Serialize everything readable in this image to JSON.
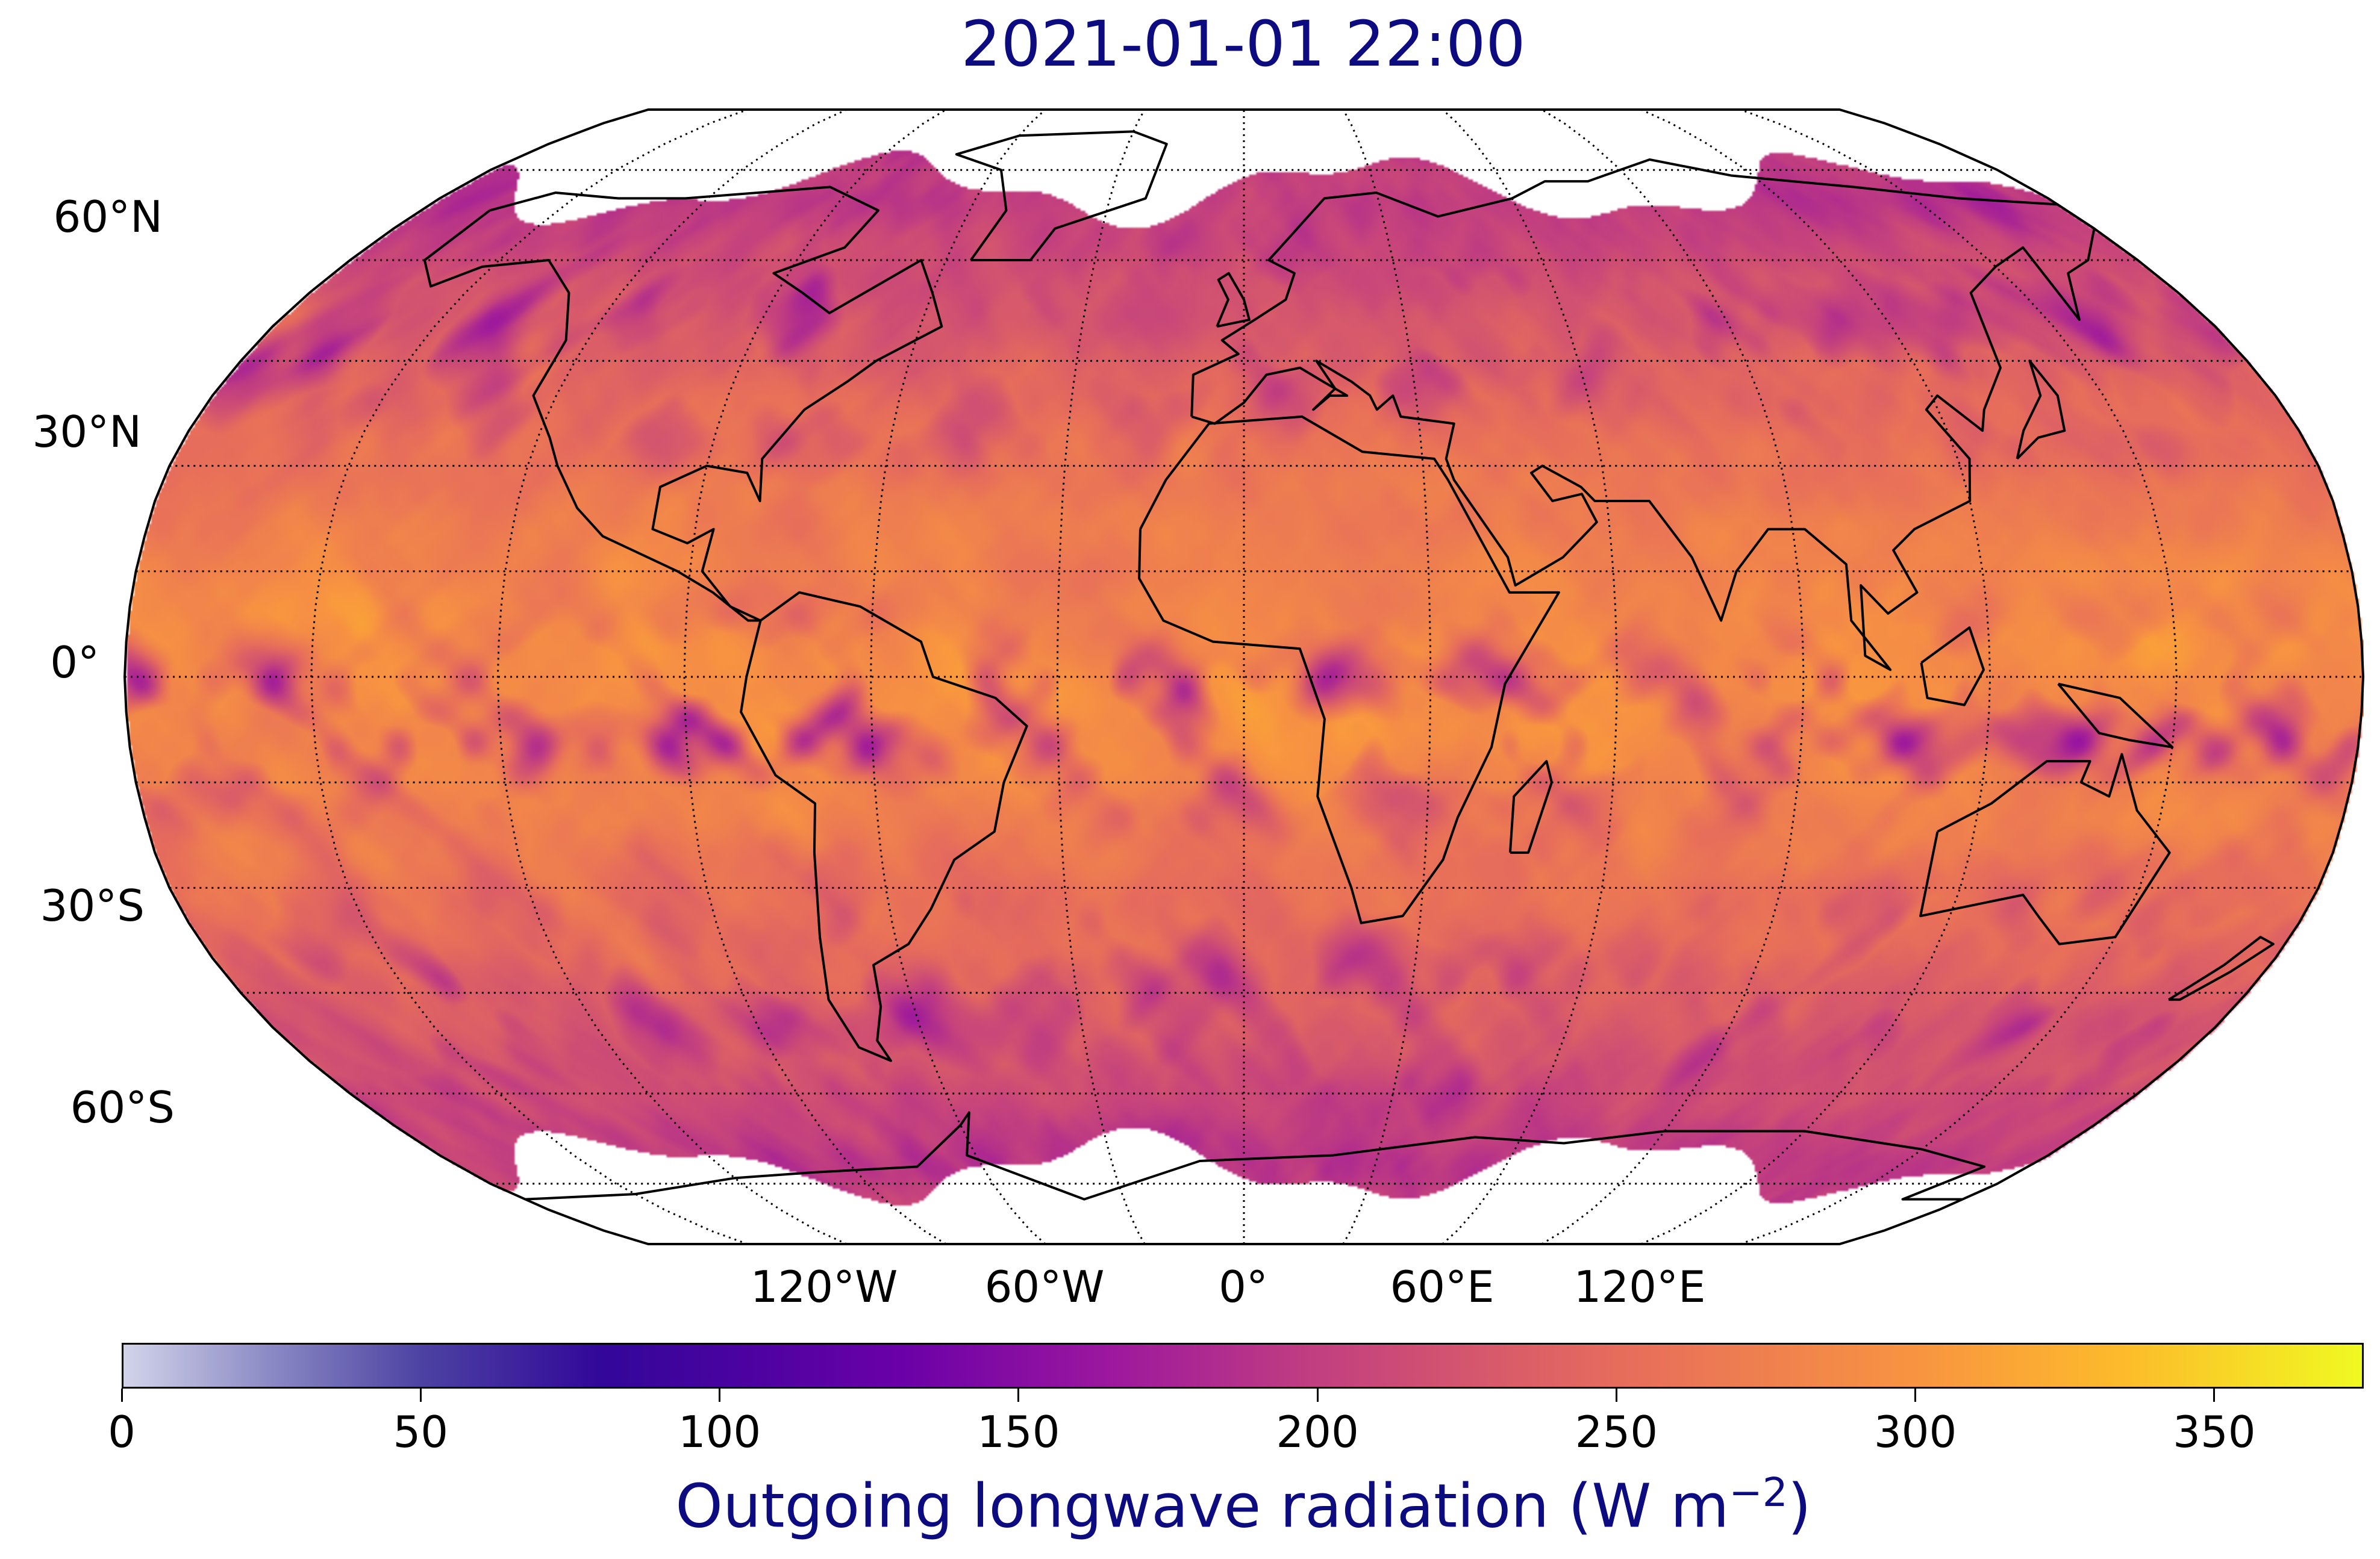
{
  "title": "2021-01-01 22:00",
  "map": {
    "projection": "Robinson",
    "central_longitude": 0,
    "gridlines": {
      "meridian_step_deg": 30,
      "parallel_step_deg": 15,
      "style": "dotted",
      "color": "#000000"
    },
    "lat_labels": [
      {
        "lat": 60,
        "text": "60°N"
      },
      {
        "lat": 30,
        "text": "30°N"
      },
      {
        "lat": 0,
        "text": "0°"
      },
      {
        "lat": -30,
        "text": "30°S"
      },
      {
        "lat": -60,
        "text": "60°S"
      }
    ],
    "lon_labels": [
      {
        "lon": -120,
        "text": "120°W"
      },
      {
        "lon": -60,
        "text": "60°W"
      },
      {
        "lon": 0,
        "text": "0°"
      },
      {
        "lon": 60,
        "text": "60°E"
      },
      {
        "lon": 120,
        "text": "120°E"
      }
    ],
    "coastline_color": "#000000",
    "missing_data_color": "#ffffff"
  },
  "colorbar": {
    "colormap": "plasma (with light lavender low end)",
    "min": 0,
    "max": 375,
    "ticks": [
      {
        "value": 0,
        "text": "0"
      },
      {
        "value": 50,
        "text": "50"
      },
      {
        "value": 100,
        "text": "100"
      },
      {
        "value": 150,
        "text": "150"
      },
      {
        "value": 200,
        "text": "200"
      },
      {
        "value": 250,
        "text": "250"
      },
      {
        "value": 300,
        "text": "300"
      },
      {
        "value": 350,
        "text": "350"
      }
    ],
    "label_text": "Outgoing longwave radiation (W m",
    "label_exponent": "−2",
    "label_close": ")",
    "color_stops": [
      {
        "value": 0,
        "color": "#d2d4ea"
      },
      {
        "value": 25,
        "color": "#8a88c4"
      },
      {
        "value": 50,
        "color": "#4c42a2"
      },
      {
        "value": 80,
        "color": "#32079a"
      },
      {
        "value": 100,
        "color": "#47039f"
      },
      {
        "value": 130,
        "color": "#6a00a8"
      },
      {
        "value": 165,
        "color": "#9c179e"
      },
      {
        "value": 200,
        "color": "#c23f80"
      },
      {
        "value": 250,
        "color": "#e66c5c"
      },
      {
        "value": 300,
        "color": "#f89441"
      },
      {
        "value": 335,
        "color": "#fdbb2b"
      },
      {
        "value": 375,
        "color": "#f0f921"
      }
    ]
  },
  "colors": {
    "title": "#0c0c80",
    "axis_text": "#000000"
  }
}
